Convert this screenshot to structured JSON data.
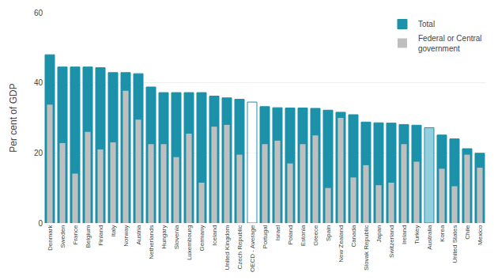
{
  "chart_data": {
    "type": "bar",
    "categories": [
      "Denmark",
      "Sweden",
      "France",
      "Belgium",
      "Finland",
      "Italy",
      "Norway",
      "Austria",
      "Netherlands",
      "Hungary",
      "Slovenia",
      "Luxembourg",
      "Germany",
      "Iceland",
      "United Kingdom",
      "Czech Republic",
      "OECD - Average",
      "Portugal",
      "Israel",
      "Poland",
      "Estonia",
      "Greece",
      "Spain",
      "New Zealand",
      "Canada",
      "Slovak Republic",
      "Japan",
      "Switzerland",
      "Ireland",
      "Turkey",
      "Australia",
      "Korea",
      "United States",
      "Chile",
      "Mexico"
    ],
    "series": [
      {
        "name": "Total",
        "color": "#1b91aa",
        "colors": [
          "#1b91aa",
          "#1b91aa",
          "#1b91aa",
          "#1b91aa",
          "#1b91aa",
          "#1b91aa",
          "#1b91aa",
          "#1b91aa",
          "#1b91aa",
          "#1b91aa",
          "#1b91aa",
          "#1b91aa",
          "#1b91aa",
          "#1b91aa",
          "#1b91aa",
          "#1b91aa",
          "#ffffff",
          "#1b91aa",
          "#1b91aa",
          "#1b91aa",
          "#1b91aa",
          "#1b91aa",
          "#1b91aa",
          "#1b91aa",
          "#1b91aa",
          "#1b91aa",
          "#1b91aa",
          "#1b91aa",
          "#1b91aa",
          "#1b91aa",
          "#92d0e0",
          "#1b91aa",
          "#1b91aa",
          "#1b91aa",
          "#1b91aa"
        ],
        "values": [
          48.0,
          44.5,
          44.5,
          44.5,
          44.3,
          42.9,
          42.9,
          42.6,
          38.8,
          37.2,
          37.2,
          37.2,
          37.2,
          36.2,
          35.7,
          35.3,
          34.5,
          33.2,
          32.9,
          32.8,
          32.8,
          32.7,
          32.2,
          31.6,
          30.9,
          28.8,
          28.6,
          28.5,
          28.1,
          27.9,
          27.2,
          25.1,
          24.0,
          21.2,
          19.9
        ]
      },
      {
        "name": "Federal or Central\ngovernment",
        "color": "#bfbfbf",
        "values": [
          33.8,
          22.8,
          14.1,
          26.0,
          21.0,
          23.0,
          37.7,
          29.5,
          22.5,
          22.5,
          18.8,
          25.5,
          11.5,
          27.5,
          28.0,
          19.5,
          null,
          22.5,
          23.5,
          17.0,
          22.5,
          25.0,
          10.0,
          30.0,
          13.0,
          16.5,
          10.8,
          11.5,
          22.5,
          17.5,
          null,
          15.5,
          10.5,
          19.5,
          15.8
        ]
      }
    ],
    "ylabel": "Per cent of GDP",
    "ylim": [
      0,
      60
    ],
    "yticks": [
      0,
      20,
      40,
      60
    ],
    "grid": true,
    "legend": "upper right"
  }
}
